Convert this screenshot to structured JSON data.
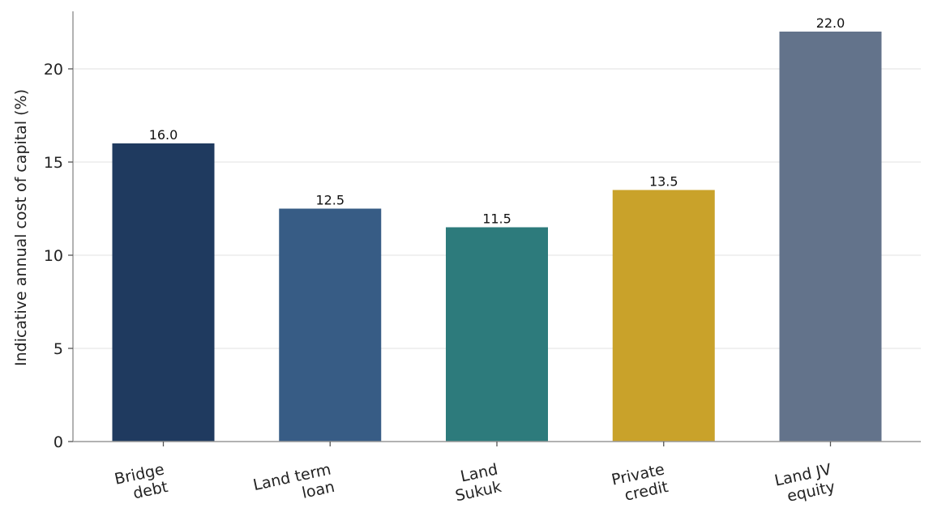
{
  "chart_data": {
    "type": "bar",
    "ylabel": "Indicative annual cost of capital (%)",
    "xlabel": "",
    "ylim": [
      0,
      23
    ],
    "yticks": [
      0,
      5,
      10,
      15,
      20
    ],
    "grid": "y",
    "categories": [
      [
        "Bridge",
        "debt"
      ],
      [
        "Land term",
        "loan"
      ],
      [
        "Land",
        "Sukuk"
      ],
      [
        "Private",
        "credit"
      ],
      [
        "Land JV",
        "equity"
      ]
    ],
    "values": [
      16.0,
      12.5,
      11.5,
      13.5,
      22.0
    ],
    "value_labels": [
      "16.0",
      "12.5",
      "11.5",
      "13.5",
      "22.0"
    ],
    "colors": [
      "#1f3a5f",
      "#375c85",
      "#2d7b7c",
      "#c9a22a",
      "#63738b"
    ]
  }
}
